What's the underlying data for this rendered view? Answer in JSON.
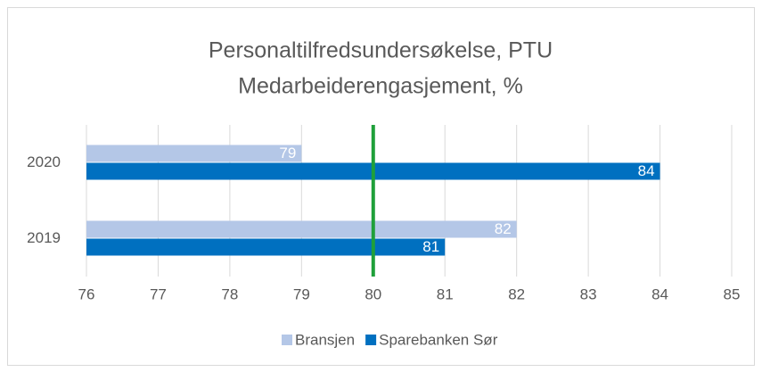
{
  "chart_data": {
    "type": "hbar",
    "title": [
      "Personaltilfredsundersøkelse, PTU",
      "Medarbeiderengasjement, %"
    ],
    "categories": [
      "2020",
      "2019"
    ],
    "series": [
      {
        "name": "Bransjen",
        "color": "#b4c7e7",
        "values": [
          79,
          82
        ]
      },
      {
        "name": "Sparebanken Sør",
        "color": "#0070c0",
        "values": [
          84,
          81
        ]
      }
    ],
    "xlim": [
      76,
      85
    ],
    "xticks": [
      76,
      77,
      78,
      79,
      80,
      81,
      82,
      83,
      84,
      85
    ],
    "grid": true,
    "legend": "bottom",
    "reference_line": 80,
    "reference_color": "#1fa03a"
  }
}
